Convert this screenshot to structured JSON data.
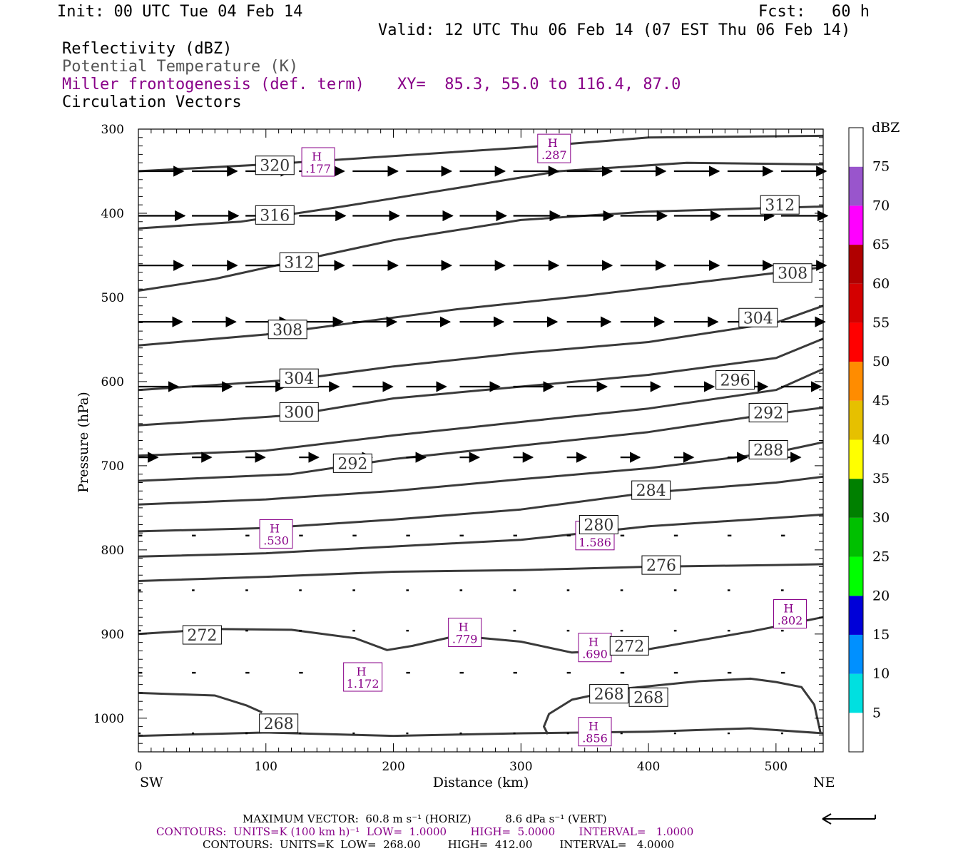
{
  "header": {
    "init": "Init: 00 UTC Tue 04 Feb 14",
    "fcst_label": "Fcst:",
    "fcst_value": "60 h",
    "valid": "Valid: 12 UTC Thu 06 Feb 14 (07 EST Thu 06 Feb 14)",
    "field1": "Reflectivity (dBZ)",
    "field2": "Potential Temperature (K)",
    "field3": "Miller frontogenesis (def. term)",
    "xy": "XY=  85.3, 55.0 to 116.4, 87.0",
    "field4": "Circulation Vectors"
  },
  "colors": {
    "theta_contour": "#3a3a3a",
    "frontogenesis": "#880088",
    "vectors": "#000000"
  },
  "chart_data": {
    "type": "cross-section",
    "xlabel": "Distance (km)",
    "ylabel": "Pressure (hPa)",
    "xlim": [
      0,
      537
    ],
    "ylim": [
      300,
      1040
    ],
    "y_scale": "linear, inverted",
    "x_ticks": [
      "0",
      "100",
      "200",
      "300",
      "400",
      "500"
    ],
    "y_ticks": [
      "300",
      "400",
      "500",
      "600",
      "700",
      "800",
      "900",
      "1000"
    ],
    "x_end_labels": {
      "left": "SW",
      "right": "NE"
    },
    "theta_contours": [
      {
        "label": "320",
        "label_at": [
          107,
          343
        ],
        "points": [
          [
            0,
            350
          ],
          [
            100,
            342
          ],
          [
            200,
            332
          ],
          [
            300,
            322
          ],
          [
            400,
            310
          ],
          [
            537,
            308
          ]
        ]
      },
      {
        "label": "316",
        "label_at": [
          107,
          402
        ],
        "points": [
          [
            0,
            418
          ],
          [
            80,
            410
          ],
          [
            160,
            392
          ],
          [
            250,
            370
          ],
          [
            330,
            350
          ],
          [
            430,
            340
          ],
          [
            537,
            342
          ]
        ]
      },
      {
        "label": "312",
        "label_at": [
          126,
          458
        ],
        "points": [
          [
            0,
            492
          ],
          [
            60,
            478
          ],
          [
            120,
            458
          ],
          [
            200,
            432
          ],
          [
            300,
            408
          ],
          [
            400,
            398
          ],
          [
            537,
            392
          ]
        ]
      },
      {
        "label": "312",
        "label_at": [
          503,
          390
        ],
        "points": []
      },
      {
        "label": "308",
        "label_at": [
          117,
          538
        ],
        "points": [
          [
            0,
            557
          ],
          [
            100,
            544
          ],
          [
            160,
            532
          ],
          [
            250,
            514
          ],
          [
            350,
            498
          ],
          [
            450,
            480
          ],
          [
            537,
            464
          ]
        ]
      },
      {
        "label": "308",
        "label_at": [
          513,
          471
        ],
        "points": []
      },
      {
        "label": "304",
        "label_at": [
          126,
          596
        ],
        "points": [
          [
            0,
            610
          ],
          [
            120,
            598
          ],
          [
            200,
            582
          ],
          [
            300,
            566
          ],
          [
            400,
            553
          ],
          [
            500,
            530
          ],
          [
            537,
            510
          ]
        ]
      },
      {
        "label": "304",
        "label_at": [
          486,
          524
        ],
        "points": []
      },
      {
        "label": "300",
        "label_at": [
          126,
          636
        ],
        "points": [
          [
            0,
            652
          ],
          [
            120,
            640
          ],
          [
            200,
            620
          ],
          [
            300,
            606
          ],
          [
            400,
            592
          ],
          [
            500,
            572
          ],
          [
            537,
            549
          ]
        ]
      },
      {
        "label": "296",
        "label_at": [
          468,
          598
        ],
        "points": [
          [
            0,
            688
          ],
          [
            100,
            682
          ],
          [
            200,
            664
          ],
          [
            300,
            648
          ],
          [
            400,
            632
          ],
          [
            500,
            610
          ],
          [
            537,
            585
          ]
        ]
      },
      {
        "label": "292",
        "label_at": [
          168,
          697
        ],
        "points": [
          [
            0,
            718
          ],
          [
            120,
            710
          ],
          [
            200,
            692
          ],
          [
            300,
            676
          ],
          [
            400,
            660
          ],
          [
            480,
            642
          ],
          [
            537,
            631
          ]
        ]
      },
      {
        "label": "292",
        "label_at": [
          494,
          637
        ],
        "points": []
      },
      {
        "label": "288",
        "label_at": [
          494,
          681
        ],
        "points": [
          [
            0,
            746
          ],
          [
            100,
            740
          ],
          [
            200,
            730
          ],
          [
            300,
            716
          ],
          [
            400,
            703
          ],
          [
            500,
            684
          ],
          [
            537,
            672
          ]
        ]
      },
      {
        "label": "284",
        "label_at": [
          402,
          729
        ],
        "points": [
          [
            0,
            778
          ],
          [
            100,
            774
          ],
          [
            200,
            764
          ],
          [
            300,
            752
          ],
          [
            400,
            732
          ],
          [
            500,
            720
          ],
          [
            537,
            713
          ]
        ]
      },
      {
        "label": "280",
        "label_at": [
          361,
          770
        ],
        "points": [
          [
            0,
            808
          ],
          [
            100,
            804
          ],
          [
            200,
            796
          ],
          [
            300,
            788
          ],
          [
            400,
            772
          ],
          [
            500,
            762
          ],
          [
            537,
            758
          ]
        ]
      },
      {
        "label": "276",
        "label_at": [
          410,
          818
        ],
        "points": [
          [
            0,
            837
          ],
          [
            100,
            832
          ],
          [
            200,
            826
          ],
          [
            300,
            824
          ],
          [
            400,
            820
          ],
          [
            500,
            818
          ],
          [
            537,
            817
          ]
        ]
      },
      {
        "label": "272",
        "label_at": [
          50,
          901
        ],
        "points": [
          [
            0,
            900
          ],
          [
            60,
            894
          ],
          [
            120,
            895
          ],
          [
            170,
            905
          ],
          [
            195,
            919
          ],
          [
            215,
            914
          ],
          [
            250,
            902
          ],
          [
            300,
            909
          ],
          [
            340,
            922
          ],
          [
            400,
            918
          ],
          [
            480,
            897
          ],
          [
            537,
            880
          ]
        ]
      },
      {
        "label": "272",
        "label_at": [
          385,
          914
        ],
        "points": []
      },
      {
        "label": "268",
        "label_at": [
          369,
          971
        ],
        "points": [
          [
            0,
            970
          ],
          [
            60,
            973
          ],
          [
            85,
            985
          ],
          [
            97,
            993
          ]
        ]
      },
      {
        "label": "268",
        "label_at": [
          110,
          1006
        ],
        "points": [
          [
            0,
            1021
          ],
          [
            100,
            1017
          ],
          [
            200,
            1021
          ],
          [
            300,
            1018
          ],
          [
            400,
            1016
          ],
          [
            480,
            1012
          ],
          [
            537,
            1018
          ]
        ]
      },
      {
        "label": "268",
        "label_at": [
          400,
          975
        ],
        "points": [
          [
            321,
            1019
          ],
          [
            318,
            1010
          ],
          [
            322,
            995
          ],
          [
            340,
            978
          ],
          [
            380,
            965
          ],
          [
            440,
            956
          ],
          [
            480,
            953
          ],
          [
            500,
            957
          ],
          [
            520,
            963
          ],
          [
            530,
            984
          ],
          [
            535,
            1018
          ]
        ]
      }
    ],
    "frontogenesis_highs": [
      {
        "label": ".177",
        "x": 141,
        "y": 339
      },
      {
        "label": ".287",
        "x": 326,
        "y": 323
      },
      {
        "label": ".530",
        "x": 108,
        "y": 781
      },
      {
        "label": "1.586",
        "x": 358,
        "y": 783
      },
      {
        "label": ".779",
        "x": 256,
        "y": 898
      },
      {
        "label": "1.172",
        "x": 176,
        "y": 951
      },
      {
        "label": ".690",
        "x": 358,
        "y": 916
      },
      {
        "label": ".802",
        "x": 511,
        "y": 876
      },
      {
        "label": ".856",
        "x": 358,
        "y": 1016
      }
    ],
    "vectors": {
      "rows": [
        {
          "p": 350,
          "u": 35,
          "w": 0
        },
        {
          "p": 403,
          "u": 36,
          "w": 0
        },
        {
          "p": 462,
          "u": 35,
          "w": 0
        },
        {
          "p": 529,
          "u": 34,
          "w": 0
        },
        {
          "p": 606,
          "u": 31,
          "w": 0
        },
        {
          "p": 690,
          "u": 15,
          "w": 0
        },
        {
          "p": 783,
          "u": 3,
          "w": 0
        },
        {
          "p": 848,
          "u": 2,
          "w": 0
        },
        {
          "p": 896,
          "u": 2,
          "w": 0
        },
        {
          "p": 946,
          "u": 3,
          "w": 0
        },
        {
          "p": 1018,
          "u": 1,
          "w": 0
        }
      ],
      "x_positions": [
        0,
        42,
        84,
        126,
        168,
        210,
        252,
        294,
        336,
        378,
        420,
        462,
        504
      ]
    },
    "colorbar": {
      "label": "dBZ",
      "ticks": [
        "5",
        "10",
        "15",
        "20",
        "25",
        "30",
        "35",
        "40",
        "45",
        "50",
        "55",
        "60",
        "65",
        "70",
        "75"
      ],
      "colors": [
        "#ffffff",
        "#00e0e0",
        "#0090ff",
        "#0000d8",
        "#00ff00",
        "#00c000",
        "#008000",
        "#ffff00",
        "#e6c000",
        "#ff8c00",
        "#ff0000",
        "#d40000",
        "#b00000",
        "#ff00ff",
        "#9955cc",
        "#ffffff"
      ]
    }
  },
  "footer": {
    "max_vector": "MAXIMUM VECTOR:  60.8 m s⁻¹ (HORIZ)          8.6 dPa s⁻¹ (VERT)",
    "contours1": "CONTOURS:  UNITS=K (100 km h)⁻¹  LOW=  1.0000       HIGH=  5.0000       INTERVAL=   1.0000",
    "contours2": "CONTOURS:  UNITS=K  LOW=  268.00        HIGH=  412.00        INTERVAL=   4.0000"
  }
}
